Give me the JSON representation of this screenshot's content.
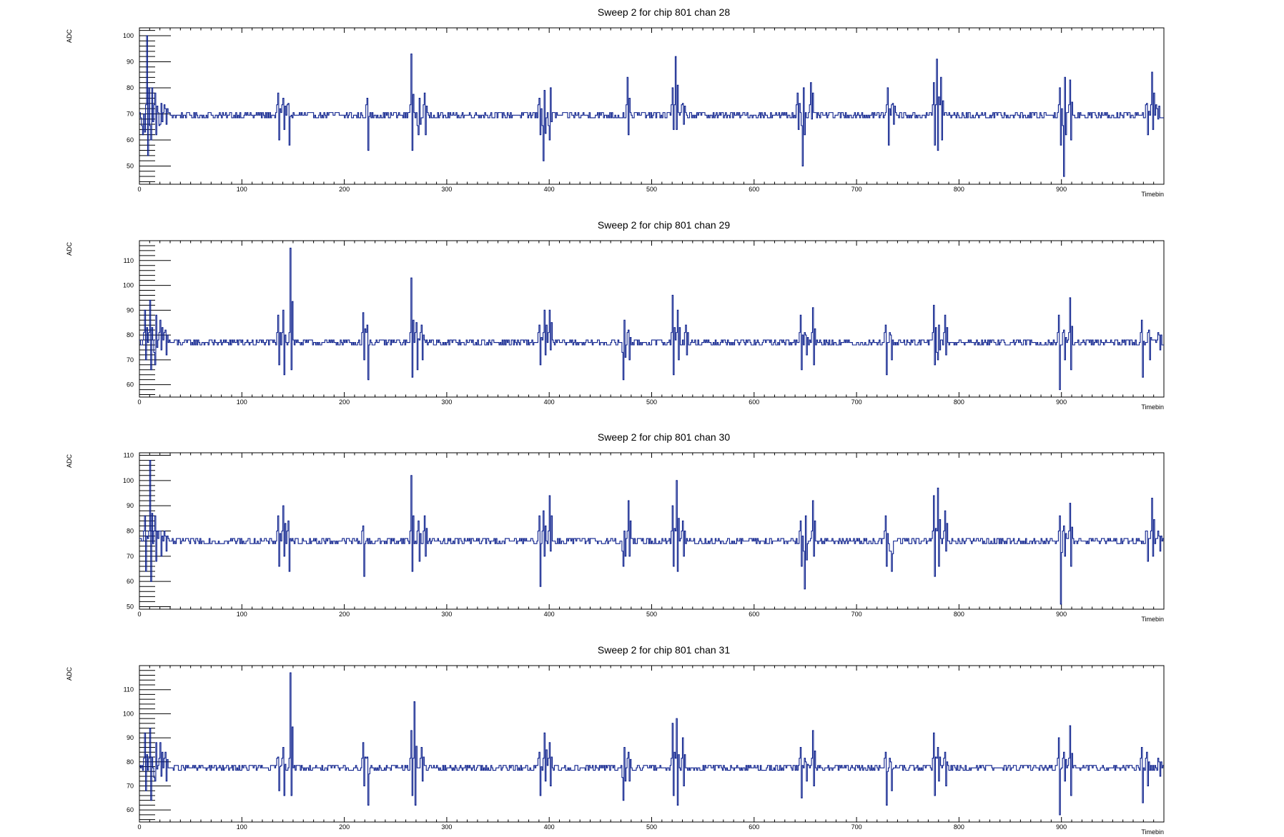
{
  "colors": {
    "trace": "#0b1f8c",
    "axis": "#000000",
    "background": "#ffffff"
  },
  "chart_data": [
    {
      "type": "line",
      "title": "Sweep 2 for chip 801 chan 28",
      "xlabel": "Timebin",
      "ylabel": "ADC",
      "xlim": [
        0,
        1000
      ],
      "ylim": [
        43,
        103
      ],
      "xticks": [
        0,
        100,
        200,
        300,
        400,
        500,
        600,
        700,
        800,
        900
      ],
      "yticks": [
        50,
        60,
        70,
        80,
        90,
        100
      ],
      "baseline": 69.5,
      "noise": 1.4,
      "grid": false,
      "events": [
        [
          3,
          62,
          70
        ],
        [
          7,
          100,
          54
        ],
        [
          11,
          60,
          80
        ],
        [
          15,
          78,
          62
        ],
        [
          20,
          66,
          74
        ],
        [
          25,
          72,
          66
        ],
        [
          135,
          78,
          60
        ],
        [
          140,
          76,
          64
        ],
        [
          145,
          74,
          58
        ],
        [
          222,
          76,
          56
        ],
        [
          265,
          93,
          56
        ],
        [
          272,
          62,
          76
        ],
        [
          278,
          78,
          62
        ],
        [
          390,
          76,
          62
        ],
        [
          394,
          52,
          79
        ],
        [
          400,
          60,
          80
        ],
        [
          476,
          84,
          62
        ],
        [
          520,
          80,
          64
        ],
        [
          523,
          92,
          64
        ],
        [
          530,
          74,
          66
        ],
        [
          642,
          78,
          64
        ],
        [
          647,
          50,
          80
        ],
        [
          655,
          82,
          68
        ],
        [
          730,
          80,
          58
        ],
        [
          735,
          74,
          66
        ],
        [
          775,
          82,
          58
        ],
        [
          778,
          91,
          56
        ],
        [
          782,
          84,
          60
        ],
        [
          898,
          80,
          58
        ],
        [
          902,
          46,
          84
        ],
        [
          908,
          83,
          60
        ],
        [
          983,
          74,
          62
        ],
        [
          988,
          86,
          64
        ],
        [
          993,
          72,
          68
        ]
      ]
    },
    {
      "type": "line",
      "title": "Sweep 2 for chip 801 chan 29",
      "xlabel": "Timebin",
      "ylabel": "ADC",
      "xlim": [
        0,
        1000
      ],
      "ylim": [
        55,
        118
      ],
      "xticks": [
        0,
        100,
        200,
        300,
        400,
        500,
        600,
        700,
        800,
        900
      ],
      "yticks": [
        60,
        70,
        80,
        90,
        100,
        110
      ],
      "baseline": 77,
      "noise": 1.4,
      "grid": false,
      "events": [
        [
          5,
          90,
          70
        ],
        [
          10,
          94,
          66
        ],
        [
          15,
          68,
          88
        ],
        [
          20,
          86,
          74
        ],
        [
          25,
          82,
          72
        ],
        [
          135,
          88,
          68
        ],
        [
          140,
          90,
          64
        ],
        [
          147,
          115,
          66
        ],
        [
          218,
          89,
          70
        ],
        [
          222,
          84,
          62
        ],
        [
          265,
          103,
          63
        ],
        [
          270,
          85,
          66
        ],
        [
          275,
          84,
          70
        ],
        [
          390,
          84,
          68
        ],
        [
          395,
          90,
          72
        ],
        [
          400,
          90,
          74
        ],
        [
          472,
          62,
          86
        ],
        [
          477,
          82,
          70
        ],
        [
          520,
          96,
          64
        ],
        [
          525,
          90,
          70
        ],
        [
          533,
          84,
          72
        ],
        [
          645,
          88,
          66
        ],
        [
          650,
          80,
          72
        ],
        [
          657,
          91,
          68
        ],
        [
          728,
          84,
          64
        ],
        [
          733,
          80,
          70
        ],
        [
          775,
          92,
          68
        ],
        [
          779,
          70,
          84
        ],
        [
          786,
          88,
          72
        ],
        [
          897,
          88,
          58
        ],
        [
          902,
          82,
          70
        ],
        [
          908,
          95,
          66
        ],
        [
          978,
          86,
          63
        ],
        [
          985,
          82,
          70
        ],
        [
          995,
          80,
          74
        ]
      ]
    },
    {
      "type": "line",
      "title": "Sweep 2 for chip 801 chan 30",
      "xlabel": "Timebin",
      "ylabel": "ADC",
      "xlim": [
        0,
        1000
      ],
      "ylim": [
        49,
        111
      ],
      "xticks": [
        0,
        100,
        200,
        300,
        400,
        500,
        600,
        700,
        800,
        900
      ],
      "yticks": [
        50,
        60,
        70,
        80,
        90,
        100,
        110
      ],
      "baseline": 76,
      "noise": 1.4,
      "grid": false,
      "events": [
        [
          5,
          86,
          64
        ],
        [
          10,
          108,
          60
        ],
        [
          15,
          86,
          68
        ],
        [
          20,
          80,
          70
        ],
        [
          25,
          78,
          72
        ],
        [
          135,
          86,
          66
        ],
        [
          140,
          90,
          70
        ],
        [
          145,
          84,
          64
        ],
        [
          218,
          82,
          62
        ],
        [
          265,
          102,
          64
        ],
        [
          272,
          84,
          68
        ],
        [
          278,
          86,
          70
        ],
        [
          390,
          86,
          58
        ],
        [
          394,
          88,
          70
        ],
        [
          400,
          94,
          72
        ],
        [
          472,
          66,
          80
        ],
        [
          477,
          92,
          70
        ],
        [
          520,
          90,
          66
        ],
        [
          524,
          100,
          64
        ],
        [
          530,
          84,
          70
        ],
        [
          645,
          84,
          66
        ],
        [
          649,
          57,
          86
        ],
        [
          657,
          92,
          70
        ],
        [
          728,
          86,
          66
        ],
        [
          733,
          72,
          64
        ],
        [
          775,
          94,
          62
        ],
        [
          779,
          97,
          66
        ],
        [
          786,
          88,
          72
        ],
        [
          898,
          86,
          51
        ],
        [
          902,
          82,
          70
        ],
        [
          908,
          91,
          66
        ],
        [
          983,
          80,
          68
        ],
        [
          988,
          93,
          70
        ],
        [
          995,
          78,
          72
        ]
      ]
    },
    {
      "type": "line",
      "title": "Sweep 2 for chip 801 chan 31",
      "xlabel": "Timebin",
      "ylabel": "ADC",
      "xlim": [
        0,
        1000
      ],
      "ylim": [
        55,
        120
      ],
      "xticks": [
        0,
        100,
        200,
        300,
        400,
        500,
        600,
        700,
        800,
        900
      ],
      "yticks": [
        60,
        70,
        80,
        90,
        100,
        110
      ],
      "baseline": 77.5,
      "noise": 1.4,
      "grid": false,
      "events": [
        [
          5,
          92,
          68
        ],
        [
          10,
          94,
          64
        ],
        [
          15,
          72,
          88
        ],
        [
          20,
          88,
          74
        ],
        [
          25,
          84,
          72
        ],
        [
          135,
          82,
          68
        ],
        [
          140,
          86,
          66
        ],
        [
          147,
          117,
          66
        ],
        [
          218,
          88,
          70
        ],
        [
          222,
          82,
          62
        ],
        [
          265,
          93,
          66
        ],
        [
          268,
          105,
          62
        ],
        [
          275,
          86,
          72
        ],
        [
          390,
          84,
          66
        ],
        [
          395,
          92,
          72
        ],
        [
          400,
          88,
          70
        ],
        [
          472,
          64,
          86
        ],
        [
          477,
          84,
          72
        ],
        [
          520,
          96,
          66
        ],
        [
          524,
          98,
          62
        ],
        [
          530,
          90,
          70
        ],
        [
          645,
          86,
          65
        ],
        [
          650,
          80,
          72
        ],
        [
          657,
          93,
          70
        ],
        [
          728,
          84,
          62
        ],
        [
          733,
          80,
          68
        ],
        [
          775,
          92,
          66
        ],
        [
          779,
          86,
          72
        ],
        [
          786,
          84,
          70
        ],
        [
          897,
          90,
          58
        ],
        [
          902,
          84,
          72
        ],
        [
          908,
          95,
          66
        ],
        [
          978,
          86,
          63
        ],
        [
          983,
          84,
          70
        ],
        [
          995,
          80,
          74
        ]
      ]
    }
  ]
}
